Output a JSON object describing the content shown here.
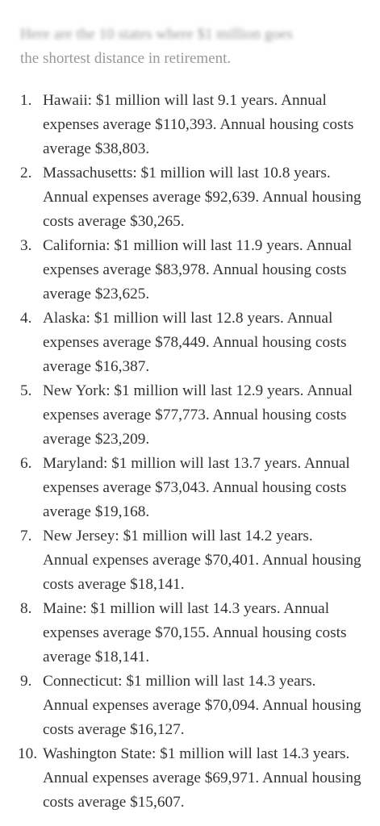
{
  "intro": {
    "line1": "Here are the 10 states where $1 million goes",
    "line2": "the shortest distance in retirement."
  },
  "items": [
    {
      "number": "1.",
      "text": "Hawaii: $1 million will last 9.1 years. Annual expenses average $110,393. Annual housing costs average $38,803."
    },
    {
      "number": "2.",
      "text": "Massachusetts: $1 million will last 10.8 years. Annual expenses average $92,639. Annual housing costs average $30,265."
    },
    {
      "number": "3.",
      "text": "California: $1 million will last 11.9 years. Annual expenses average $83,978. Annual housing costs average $23,625."
    },
    {
      "number": "4.",
      "text": "Alaska: $1 million will last 12.8 years. Annual expenses average $78,449. Annual housing costs average $16,387."
    },
    {
      "number": "5.",
      "text": "New York: $1 million will last 12.9 years. Annual expenses average $77,773. Annual housing costs average $23,209."
    },
    {
      "number": "6.",
      "text": "Maryland: $1 million will last 13.7 years. Annual expenses average $73,043. Annual housing costs average $19,168."
    },
    {
      "number": "7.",
      "text": "New Jersey: $1 million will last 14.2 years. Annual expenses average $70,401. Annual housing costs average $18,141."
    },
    {
      "number": "8.",
      "text": "Maine: $1 million will last 14.3 years. Annual expenses average $70,155. Annual housing costs average $18,141."
    },
    {
      "number": "9.",
      "text": "Connecticut: $1 million will last 14.3 years. Annual expenses average $70,094. Annual housing costs average $16,127."
    },
    {
      "number": "10.",
      "text": "Washington State: $1 million will last 14.3 years. Annual expenses average $69,971. Annual housing costs average $15,607."
    }
  ]
}
